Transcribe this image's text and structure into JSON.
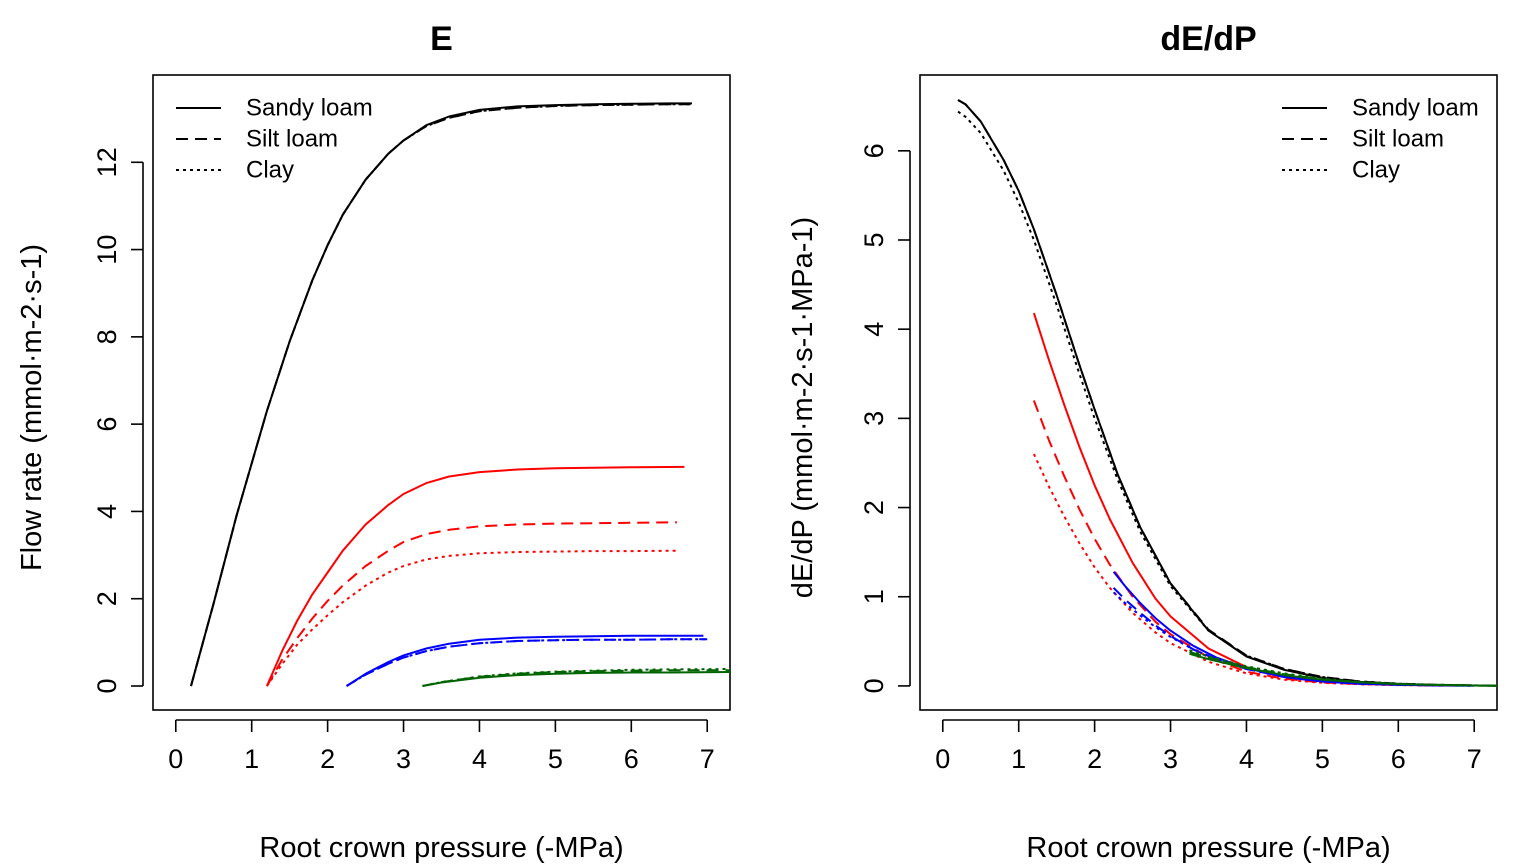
{
  "chart_data": [
    {
      "type": "line",
      "title": "E",
      "xlabel": "Root crown pressure (-MPa)",
      "ylabel": "Flow rate  (mmol·m-2·s-1)",
      "xlim": [
        -0.3,
        7.3
      ],
      "ylim": [
        -0.55,
        14.0
      ],
      "xticks": [
        0,
        1,
        2,
        3,
        4,
        5,
        6,
        7
      ],
      "yticks": [
        0,
        2,
        4,
        6,
        8,
        10,
        12
      ],
      "legend": {
        "position": "top-left",
        "entries": [
          {
            "label": "Sandy loam",
            "dash": "solid"
          },
          {
            "label": "Silt loam",
            "dash": "dashed"
          },
          {
            "label": "Clay",
            "dash": "dotted"
          }
        ]
      },
      "series": [
        {
          "color": "#000000",
          "dash": "solid",
          "x": [
            0.2,
            0.5,
            0.8,
            1.0,
            1.2,
            1.5,
            1.8,
            2.0,
            2.2,
            2.5,
            2.8,
            3.0,
            3.3,
            3.6,
            4.0,
            4.5,
            5.0,
            5.5,
            6.0,
            6.5,
            6.8
          ],
          "y": [
            0,
            1.9,
            3.9,
            5.1,
            6.3,
            7.9,
            9.3,
            10.1,
            10.8,
            11.6,
            12.2,
            12.5,
            12.85,
            13.05,
            13.2,
            13.28,
            13.31,
            13.33,
            13.34,
            13.35,
            13.35
          ]
        },
        {
          "color": "#000000",
          "dash": "dashed",
          "x": [
            0.2,
            0.5,
            0.8,
            1.0,
            1.2,
            1.5,
            1.8,
            2.0,
            2.2,
            2.5,
            2.8,
            3.0,
            3.3,
            3.6,
            4.0,
            4.5,
            5.0,
            5.5,
            6.0,
            6.5,
            6.8
          ],
          "y": [
            0,
            1.9,
            3.9,
            5.1,
            6.3,
            7.9,
            9.3,
            10.1,
            10.8,
            11.6,
            12.2,
            12.5,
            12.83,
            13.02,
            13.17,
            13.25,
            13.29,
            13.31,
            13.32,
            13.33,
            13.33
          ]
        },
        {
          "color": "#000000",
          "dash": "dotted",
          "x": [
            0.2,
            0.5,
            0.8,
            1.0,
            1.2,
            1.5,
            1.8,
            2.0,
            2.2,
            2.5,
            2.8,
            3.0,
            3.3,
            3.6,
            4.0,
            4.5,
            5.0,
            5.5,
            6.0,
            6.5,
            6.8
          ],
          "y": [
            0,
            1.9,
            3.9,
            5.1,
            6.3,
            7.9,
            9.3,
            10.1,
            10.8,
            11.6,
            12.2,
            12.5,
            12.83,
            13.02,
            13.17,
            13.25,
            13.29,
            13.31,
            13.32,
            13.33,
            13.33
          ]
        },
        {
          "color": "#ff0000",
          "dash": "solid",
          "x": [
            1.2,
            1.4,
            1.6,
            1.8,
            2.0,
            2.2,
            2.5,
            2.8,
            3.0,
            3.3,
            3.6,
            4.0,
            4.5,
            5.0,
            5.5,
            6.0,
            6.7
          ],
          "y": [
            0,
            0.8,
            1.5,
            2.1,
            2.6,
            3.1,
            3.7,
            4.15,
            4.4,
            4.65,
            4.8,
            4.9,
            4.96,
            4.99,
            5.0,
            5.01,
            5.02
          ]
        },
        {
          "color": "#ff0000",
          "dash": "dashed",
          "x": [
            1.2,
            1.4,
            1.6,
            1.8,
            2.0,
            2.2,
            2.5,
            2.8,
            3.0,
            3.3,
            3.6,
            4.0,
            4.5,
            5.0,
            5.5,
            6.0,
            6.6
          ],
          "y": [
            0,
            0.6,
            1.1,
            1.55,
            1.95,
            2.3,
            2.75,
            3.1,
            3.3,
            3.48,
            3.58,
            3.66,
            3.7,
            3.72,
            3.73,
            3.74,
            3.75
          ]
        },
        {
          "color": "#ff0000",
          "dash": "dotted",
          "x": [
            1.2,
            1.4,
            1.6,
            1.8,
            2.0,
            2.2,
            2.5,
            2.8,
            3.0,
            3.3,
            3.6,
            4.0,
            4.5,
            5.0,
            5.5,
            6.0,
            6.6
          ],
          "y": [
            0,
            0.5,
            0.95,
            1.3,
            1.62,
            1.92,
            2.3,
            2.6,
            2.75,
            2.9,
            2.98,
            3.04,
            3.07,
            3.08,
            3.09,
            3.09,
            3.1
          ]
        },
        {
          "color": "#0000ff",
          "dash": "solid",
          "x": [
            2.25,
            2.5,
            2.8,
            3.0,
            3.3,
            3.6,
            4.0,
            4.5,
            5.0,
            5.5,
            6.0,
            6.5,
            6.95
          ],
          "y": [
            0,
            0.28,
            0.55,
            0.7,
            0.86,
            0.97,
            1.06,
            1.11,
            1.13,
            1.14,
            1.15,
            1.15,
            1.15
          ]
        },
        {
          "color": "#0000ff",
          "dash": "dashed",
          "x": [
            2.25,
            2.5,
            2.8,
            3.0,
            3.3,
            3.6,
            4.0,
            4.5,
            5.0,
            5.5,
            6.0,
            6.5,
            7.0
          ],
          "y": [
            0,
            0.26,
            0.51,
            0.65,
            0.8,
            0.9,
            0.98,
            1.03,
            1.05,
            1.06,
            1.06,
            1.07,
            1.07
          ]
        },
        {
          "color": "#0000ff",
          "dash": "dotted",
          "x": [
            2.25,
            2.5,
            2.8,
            3.0,
            3.3,
            3.6,
            4.0,
            4.5,
            5.0,
            5.5,
            6.0,
            6.5,
            7.0
          ],
          "y": [
            0,
            0.26,
            0.51,
            0.65,
            0.8,
            0.9,
            0.98,
            1.03,
            1.05,
            1.06,
            1.06,
            1.07,
            1.07
          ]
        },
        {
          "color": "#006400",
          "dash": "solid",
          "x": [
            3.25,
            3.5,
            4.0,
            4.5,
            5.0,
            5.5,
            6.0,
            6.5,
            7.3
          ],
          "y": [
            0,
            0.08,
            0.19,
            0.25,
            0.28,
            0.3,
            0.31,
            0.31,
            0.32
          ]
        },
        {
          "color": "#006400",
          "dash": "dashed",
          "x": [
            3.25,
            3.5,
            4.0,
            4.5,
            5.0,
            5.5,
            6.0,
            6.5,
            7.3
          ],
          "y": [
            0,
            0.09,
            0.21,
            0.28,
            0.32,
            0.34,
            0.35,
            0.36,
            0.36
          ]
        },
        {
          "color": "#006400",
          "dash": "dotted",
          "x": [
            3.25,
            3.5,
            4.0,
            4.5,
            5.0,
            5.5,
            6.0,
            6.5,
            7.3
          ],
          "y": [
            0,
            0.09,
            0.22,
            0.29,
            0.33,
            0.35,
            0.37,
            0.38,
            0.39
          ]
        }
      ]
    },
    {
      "type": "line",
      "title": "dE/dP",
      "xlabel": "Root crown pressure (-MPa)",
      "ylabel": "dE/dP  (mmol·m-2·s-1·MPa-1)",
      "xlim": [
        -0.3,
        7.3
      ],
      "ylim": [
        -0.27,
        6.85
      ],
      "xticks": [
        0,
        1,
        2,
        3,
        4,
        5,
        6,
        7
      ],
      "yticks": [
        0,
        1,
        2,
        3,
        4,
        5,
        6
      ],
      "legend": {
        "position": "top-right",
        "entries": [
          {
            "label": "Sandy loam",
            "dash": "solid"
          },
          {
            "label": "Silt loam",
            "dash": "dashed"
          },
          {
            "label": "Clay",
            "dash": "dotted"
          }
        ]
      },
      "series": [
        {
          "color": "#000000",
          "dash": "solid",
          "x": [
            0.2,
            0.3,
            0.5,
            0.8,
            1.0,
            1.2,
            1.5,
            1.8,
            2.0,
            2.3,
            2.6,
            3.0,
            3.5,
            4.0,
            4.5,
            5.0,
            5.5,
            6.0,
            6.5,
            7.0,
            7.3
          ],
          "y": [
            6.57,
            6.52,
            6.33,
            5.9,
            5.55,
            5.12,
            4.38,
            3.6,
            3.1,
            2.38,
            1.78,
            1.15,
            0.62,
            0.33,
            0.18,
            0.09,
            0.045,
            0.02,
            0.01,
            0.005,
            0.003
          ]
        },
        {
          "color": "#000000",
          "dash": "dashed",
          "x": [
            0.2,
            0.3,
            0.5,
            0.8,
            1.0,
            1.2,
            1.5,
            1.8,
            2.0,
            2.3,
            2.6,
            3.0,
            3.5,
            4.0,
            4.5,
            5.0,
            5.5,
            6.0,
            6.5,
            7.0,
            7.3
          ],
          "y": [
            6.57,
            6.52,
            6.33,
            5.9,
            5.55,
            5.12,
            4.38,
            3.6,
            3.1,
            2.38,
            1.78,
            1.15,
            0.63,
            0.34,
            0.19,
            0.1,
            0.05,
            0.025,
            0.012,
            0.006,
            0.004
          ]
        },
        {
          "color": "#000000",
          "dash": "dotted",
          "x": [
            0.2,
            0.3,
            0.5,
            0.8,
            1.0,
            1.2,
            1.5,
            1.8,
            2.0,
            2.3,
            2.6,
            3.0,
            3.5,
            4.0,
            4.5,
            5.0,
            5.5,
            6.0,
            6.5,
            7.0,
            7.3
          ],
          "y": [
            6.44,
            6.38,
            6.2,
            5.78,
            5.42,
            5.0,
            4.27,
            3.5,
            3.0,
            2.32,
            1.73,
            1.12,
            0.62,
            0.34,
            0.19,
            0.1,
            0.05,
            0.025,
            0.012,
            0.006,
            0.004
          ]
        },
        {
          "color": "#ff0000",
          "dash": "solid",
          "x": [
            1.2,
            1.4,
            1.6,
            1.8,
            2.0,
            2.2,
            2.5,
            2.8,
            3.0,
            3.5,
            4.0,
            4.5,
            5.0,
            5.5,
            6.0,
            6.7
          ],
          "y": [
            4.18,
            3.65,
            3.15,
            2.68,
            2.25,
            1.87,
            1.38,
            0.98,
            0.78,
            0.42,
            0.21,
            0.1,
            0.05,
            0.025,
            0.012,
            0.004
          ]
        },
        {
          "color": "#ff0000",
          "dash": "dashed",
          "x": [
            1.2,
            1.4,
            1.6,
            1.8,
            2.0,
            2.2,
            2.5,
            2.8,
            3.0,
            3.5,
            4.0,
            4.5,
            5.0,
            5.5,
            6.0,
            6.6
          ],
          "y": [
            3.2,
            2.75,
            2.35,
            1.98,
            1.65,
            1.36,
            1.0,
            0.72,
            0.58,
            0.32,
            0.16,
            0.08,
            0.04,
            0.02,
            0.01,
            0.004
          ]
        },
        {
          "color": "#ff0000",
          "dash": "dotted",
          "x": [
            1.2,
            1.4,
            1.6,
            1.8,
            2.0,
            2.2,
            2.5,
            2.8,
            3.0,
            3.5,
            4.0,
            4.5,
            5.0,
            5.5,
            6.0,
            6.6
          ],
          "y": [
            2.6,
            2.23,
            1.9,
            1.6,
            1.33,
            1.1,
            0.82,
            0.6,
            0.48,
            0.27,
            0.14,
            0.07,
            0.035,
            0.018,
            0.009,
            0.003
          ]
        },
        {
          "color": "#0000ff",
          "dash": "solid",
          "x": [
            2.25,
            2.4,
            2.6,
            2.8,
            3.0,
            3.3,
            3.6,
            4.0,
            4.5,
            5.0,
            5.5,
            6.0,
            6.5,
            6.95
          ],
          "y": [
            1.28,
            1.12,
            0.93,
            0.76,
            0.62,
            0.45,
            0.32,
            0.2,
            0.1,
            0.05,
            0.025,
            0.012,
            0.006,
            0.003
          ]
        },
        {
          "color": "#0000ff",
          "dash": "dashed",
          "x": [
            2.25,
            2.4,
            2.6,
            2.8,
            3.0,
            3.3,
            3.6,
            4.0,
            4.5,
            5.0,
            5.5,
            6.0,
            6.5,
            7.0
          ],
          "y": [
            1.1,
            0.97,
            0.82,
            0.68,
            0.56,
            0.41,
            0.3,
            0.19,
            0.1,
            0.05,
            0.025,
            0.012,
            0.006,
            0.003
          ]
        },
        {
          "color": "#0000ff",
          "dash": "dotted",
          "x": [
            2.25,
            2.4,
            2.6,
            2.8,
            3.0,
            3.3,
            3.6,
            4.0,
            4.5,
            5.0,
            5.5,
            6.0,
            6.5,
            7.0
          ],
          "y": [
            1.05,
            0.93,
            0.79,
            0.66,
            0.55,
            0.41,
            0.3,
            0.19,
            0.1,
            0.05,
            0.025,
            0.012,
            0.006,
            0.003
          ]
        },
        {
          "color": "#006400",
          "dash": "solid",
          "x": [
            3.25,
            3.5,
            4.0,
            4.5,
            5.0,
            5.5,
            6.0,
            6.5,
            7.0,
            7.3
          ],
          "y": [
            0.36,
            0.3,
            0.2,
            0.12,
            0.07,
            0.04,
            0.02,
            0.01,
            0.005,
            0.003
          ]
        },
        {
          "color": "#006400",
          "dash": "dashed",
          "x": [
            3.25,
            3.5,
            4.0,
            4.5,
            5.0,
            5.5,
            6.0,
            6.5,
            7.0,
            7.3
          ],
          "y": [
            0.38,
            0.32,
            0.21,
            0.13,
            0.075,
            0.042,
            0.022,
            0.011,
            0.005,
            0.003
          ]
        },
        {
          "color": "#006400",
          "dash": "dotted",
          "x": [
            3.25,
            3.5,
            4.0,
            4.5,
            5.0,
            5.5,
            6.0,
            6.5,
            7.0,
            7.3
          ],
          "y": [
            0.4,
            0.33,
            0.22,
            0.14,
            0.08,
            0.045,
            0.024,
            0.012,
            0.006,
            0.003
          ]
        }
      ]
    }
  ]
}
